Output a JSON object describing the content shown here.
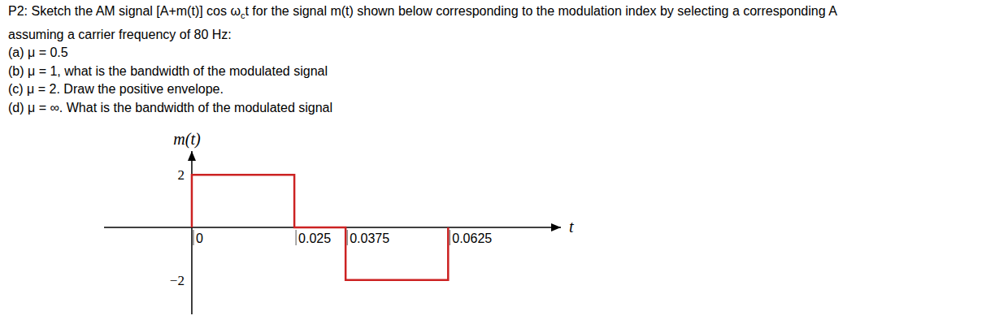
{
  "problem": {
    "lines": [
      [
        {
          "text": "P2: Sketch the AM signal [A+m(t)] cos ω"
        },
        {
          "text": "c",
          "sub": true
        },
        {
          "text": "t for the signal m(t) shown below corresponding to the modulation index by selecting a corresponding A"
        }
      ],
      [
        {
          "text": "assuming a carrier frequency of 80 Hz:"
        }
      ],
      [
        {
          "text": "(a) μ = 0.5"
        }
      ],
      [
        {
          "text": "(b) μ = 1, what is the bandwidth of the modulated signal"
        }
      ],
      [
        {
          "text": "(c) μ = 2. Draw the positive envelope."
        }
      ],
      [
        {
          "text": "(d) μ = ∞. What is the bandwidth of the modulated signal"
        }
      ]
    ]
  },
  "chart_data": {
    "type": "line",
    "y_label": "m(t)",
    "x_label": "t",
    "x": [
      0,
      0,
      0.025,
      0.025,
      0.0375,
      0.0375,
      0.0625,
      0.0625
    ],
    "values": [
      0,
      2,
      2,
      0,
      0,
      -2,
      -2,
      0
    ],
    "color": "#cc2222",
    "xlim": [
      -0.0214,
      0.09
    ],
    "ylim": [
      -3.3,
      2.9
    ],
    "xticks": [
      0,
      0.025,
      0.0375,
      0.0625
    ],
    "yticks": [
      {
        "value": -2,
        "label": "−2"
      },
      2
    ],
    "grid": false
  }
}
